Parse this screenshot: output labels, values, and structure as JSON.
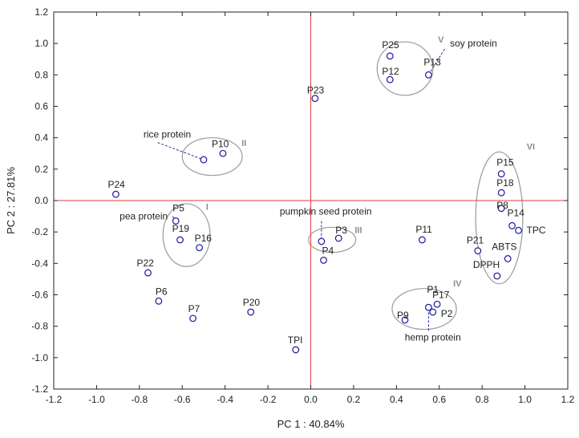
{
  "chart_data": {
    "type": "scatter",
    "xlabel": "PC 1 : 40.84%",
    "ylabel": "PC 2 : 27.81%",
    "xlim": [
      -1.2,
      1.2
    ],
    "ylim": [
      -1.2,
      1.2
    ],
    "xticks": [
      "-1.2",
      "-1.0",
      "-0.8",
      "-0.6",
      "-0.4",
      "-0.2",
      "0.0",
      "0.2",
      "0.4",
      "0.6",
      "0.8",
      "1.0",
      "1.2"
    ],
    "yticks": [
      "1.2",
      "1.0",
      "0.8",
      "0.6",
      "0.4",
      "0.2",
      "0.0",
      "-0.2",
      "-0.4",
      "-0.6",
      "-0.8",
      "-1.0",
      "-1.2"
    ],
    "grid": false,
    "reference_lines": {
      "x": 0,
      "y": 0,
      "color": "#e04040"
    },
    "marker_color": "#1a1a9a",
    "points": [
      {
        "label": "P1",
        "x": 0.55,
        "y": -0.68
      },
      {
        "label": "P2",
        "x": 0.57,
        "y": -0.71
      },
      {
        "label": "P3",
        "x": 0.13,
        "y": -0.24
      },
      {
        "label": "P4",
        "x": 0.06,
        "y": -0.38
      },
      {
        "label": "P5",
        "x": -0.63,
        "y": -0.13
      },
      {
        "label": "P6",
        "x": -0.71,
        "y": -0.64
      },
      {
        "label": "P7",
        "x": -0.55,
        "y": -0.75
      },
      {
        "label": "P8",
        "x": 0.89,
        "y": -0.05
      },
      {
        "label": "P9",
        "x": 0.44,
        "y": -0.76
      },
      {
        "label": "P10",
        "x": -0.41,
        "y": 0.3
      },
      {
        "label": "P11",
        "x": 0.52,
        "y": -0.25
      },
      {
        "label": "P12",
        "x": 0.37,
        "y": 0.77
      },
      {
        "label": "P13",
        "x": 0.55,
        "y": 0.8
      },
      {
        "label": "P14",
        "x": 0.94,
        "y": -0.16
      },
      {
        "label": "P15",
        "x": 0.89,
        "y": 0.17
      },
      {
        "label": "P16",
        "x": -0.52,
        "y": -0.3
      },
      {
        "label": "P17",
        "x": 0.59,
        "y": -0.66
      },
      {
        "label": "P18",
        "x": 0.89,
        "y": 0.05
      },
      {
        "label": "P19",
        "x": -0.61,
        "y": -0.25
      },
      {
        "label": "P20",
        "x": -0.28,
        "y": -0.71
      },
      {
        "label": "P21",
        "x": 0.78,
        "y": -0.32
      },
      {
        "label": "P22",
        "x": -0.76,
        "y": -0.46
      },
      {
        "label": "P23",
        "x": 0.02,
        "y": 0.65
      },
      {
        "label": "P24",
        "x": -0.91,
        "y": 0.04
      },
      {
        "label": "P25",
        "x": 0.37,
        "y": 0.92
      },
      {
        "label": "TPI",
        "x": -0.07,
        "y": -0.95
      },
      {
        "label": "TPC",
        "x": 0.97,
        "y": -0.19
      },
      {
        "label": "ABTS",
        "x": 0.92,
        "y": -0.37
      },
      {
        "label": "DPPH",
        "x": 0.87,
        "y": -0.48
      }
    ],
    "unlabeled_points": [
      {
        "x": -0.5,
        "y": 0.26
      },
      {
        "x": 0.05,
        "y": -0.26
      }
    ],
    "annotations": [
      {
        "text": "rice protein",
        "x": -0.67,
        "y": 0.4
      },
      {
        "text": "pea protein",
        "x": -0.78,
        "y": -0.12
      },
      {
        "text": "pumpkin seed protein",
        "x": 0.07,
        "y": -0.09
      },
      {
        "text": "soy protein",
        "x": 0.76,
        "y": 0.98
      },
      {
        "text": "hemp protein",
        "x": 0.57,
        "y": -0.89
      }
    ],
    "groups": [
      {
        "label": "I",
        "cx": -0.58,
        "cy": -0.22,
        "rx": 0.11,
        "ry": 0.2
      },
      {
        "label": "II",
        "cx": -0.46,
        "cy": 0.28,
        "rx": 0.14,
        "ry": 0.12
      },
      {
        "label": "III",
        "cx": 0.1,
        "cy": -0.25,
        "rx": 0.11,
        "ry": 0.08
      },
      {
        "label": "IV",
        "cx": 0.53,
        "cy": -0.69,
        "rx": 0.15,
        "ry": 0.13
      },
      {
        "label": "V",
        "cx": 0.44,
        "cy": 0.84,
        "rx": 0.13,
        "ry": 0.17
      },
      {
        "label": "VI",
        "cx": 0.88,
        "cy": -0.11,
        "rx": 0.11,
        "ry": 0.42
      }
    ]
  }
}
